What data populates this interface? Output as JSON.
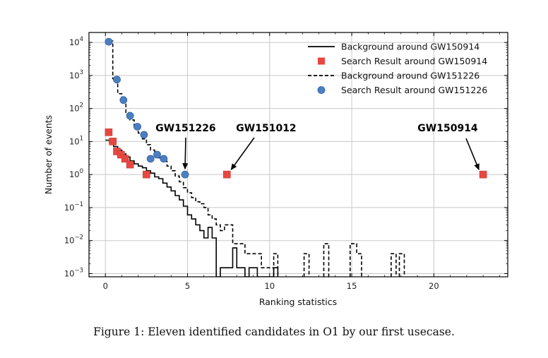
{
  "caption": "Figure 1: Eleven identified candidates in O1 by our first usecase.",
  "colors": {
    "square": "#e8473f",
    "circle": "#4c7fc1",
    "circle_edge": "#2f5f9e",
    "grid": "#c8c8c8",
    "line": "#000000"
  },
  "chart_data": {
    "type": "line",
    "xlabel": "Ranking statistics",
    "ylabel": "Number of events",
    "xlim": [
      -1,
      24.5
    ],
    "ylim": [
      0.0008,
      20000
    ],
    "yscale": "log",
    "grid": true,
    "legend_position": "top-right",
    "xticks": [
      0,
      5,
      10,
      15,
      20
    ],
    "xtick_labels": [
      "0",
      "5",
      "10",
      "15",
      "20"
    ],
    "yticks": [
      {
        "value": 0.001,
        "base": "10",
        "exp": "−3"
      },
      {
        "value": 0.01,
        "base": "10",
        "exp": "−2"
      },
      {
        "value": 0.1,
        "base": "10",
        "exp": "−1"
      },
      {
        "value": 1,
        "base": "10",
        "exp": "0"
      },
      {
        "value": 10,
        "base": "10",
        "exp": "1"
      },
      {
        "value": 100,
        "base": "10",
        "exp": "2"
      },
      {
        "value": 1000,
        "base": "10",
        "exp": "3"
      },
      {
        "value": 10000,
        "base": "10",
        "exp": "4"
      }
    ],
    "series": [
      {
        "name": "Background around GW150914",
        "kind": "step",
        "style": "solid",
        "points": [
          [
            0,
            11
          ],
          [
            0.25,
            11
          ],
          [
            0.25,
            9
          ],
          [
            0.5,
            9
          ],
          [
            0.5,
            7
          ],
          [
            0.75,
            7
          ],
          [
            0.75,
            5.5
          ],
          [
            1,
            5.5
          ],
          [
            1,
            4.2
          ],
          [
            1.25,
            4.2
          ],
          [
            1.25,
            3.4
          ],
          [
            1.5,
            3.4
          ],
          [
            1.5,
            2.6
          ],
          [
            1.75,
            2.6
          ],
          [
            1.75,
            2.1
          ],
          [
            2,
            2.1
          ],
          [
            2,
            1.8
          ],
          [
            2.25,
            1.8
          ],
          [
            2.25,
            1.6
          ],
          [
            2.5,
            1.6
          ],
          [
            2.5,
            1.3
          ],
          [
            2.75,
            1.3
          ],
          [
            2.75,
            1.1
          ],
          [
            3,
            1.1
          ],
          [
            3,
            0.85
          ],
          [
            3.25,
            0.85
          ],
          [
            3.25,
            0.75
          ],
          [
            3.5,
            0.75
          ],
          [
            3.5,
            0.55
          ],
          [
            3.75,
            0.55
          ],
          [
            3.75,
            0.42
          ],
          [
            4,
            0.42
          ],
          [
            4,
            0.32
          ],
          [
            4.25,
            0.32
          ],
          [
            4.25,
            0.23
          ],
          [
            4.5,
            0.23
          ],
          [
            4.5,
            0.17
          ],
          [
            4.75,
            0.17
          ],
          [
            4.75,
            0.11
          ],
          [
            5,
            0.11
          ],
          [
            5,
            0.06
          ],
          [
            5.25,
            0.06
          ],
          [
            5.25,
            0.045
          ],
          [
            5.5,
            0.045
          ],
          [
            5.5,
            0.03
          ],
          [
            5.75,
            0.03
          ],
          [
            5.75,
            0.02
          ],
          [
            6,
            0.02
          ],
          [
            6,
            0.012
          ],
          [
            6.25,
            0.012
          ],
          [
            6.25,
            0.025
          ],
          [
            6.5,
            0.025
          ],
          [
            6.5,
            0.012
          ],
          [
            6.75,
            0.012
          ],
          [
            6.75,
            0.0008
          ],
          [
            7,
            0.0008
          ],
          [
            7,
            0.0015
          ],
          [
            7.75,
            0.0015
          ],
          [
            7.75,
            0.006
          ],
          [
            8,
            0.006
          ],
          [
            8,
            0.0015
          ],
          [
            8.5,
            0.0015
          ],
          [
            8.5,
            0.0008
          ],
          [
            8.75,
            0.0008
          ],
          [
            8.75,
            0.0015
          ],
          [
            9.25,
            0.0015
          ],
          [
            9.25,
            0.0008
          ],
          [
            10.25,
            0.0008
          ],
          [
            10.25,
            0.0015
          ],
          [
            10.5,
            0.0015
          ],
          [
            10.5,
            0.0008
          ]
        ]
      },
      {
        "name": "Search Result around GW150914",
        "kind": "marker",
        "marker": "square",
        "x": [
          0.2,
          0.45,
          0.7,
          0.95,
          1.2,
          1.5,
          2.5,
          7.4,
          23
        ],
        "y": [
          19,
          10,
          5,
          4,
          3,
          2,
          1,
          1,
          1
        ]
      },
      {
        "name": "Background around GW151226",
        "kind": "step",
        "style": "dashed",
        "points": [
          [
            0.25,
            11000
          ],
          [
            0.45,
            11000
          ],
          [
            0.45,
            800
          ],
          [
            0.75,
            800
          ],
          [
            0.75,
            280
          ],
          [
            1,
            280
          ],
          [
            1,
            150
          ],
          [
            1.25,
            150
          ],
          [
            1.25,
            75
          ],
          [
            1.5,
            75
          ],
          [
            1.5,
            45
          ],
          [
            1.75,
            45
          ],
          [
            1.75,
            25
          ],
          [
            2,
            25
          ],
          [
            2,
            18
          ],
          [
            2.25,
            18
          ],
          [
            2.25,
            12
          ],
          [
            2.5,
            12
          ],
          [
            2.5,
            8
          ],
          [
            2.75,
            8
          ],
          [
            2.75,
            5.5
          ],
          [
            3,
            5.5
          ],
          [
            3,
            4.2
          ],
          [
            3.25,
            4.2
          ],
          [
            3.25,
            3.2
          ],
          [
            3.5,
            3.2
          ],
          [
            3.5,
            2.5
          ],
          [
            3.75,
            2.5
          ],
          [
            3.75,
            1.8
          ],
          [
            4,
            1.8
          ],
          [
            4,
            1.3
          ],
          [
            4.25,
            1.3
          ],
          [
            4.25,
            0.9
          ],
          [
            4.5,
            0.9
          ],
          [
            4.5,
            0.6
          ],
          [
            4.75,
            0.6
          ],
          [
            4.75,
            0.4
          ],
          [
            5,
            0.4
          ],
          [
            5,
            0.28
          ],
          [
            5.25,
            0.28
          ],
          [
            5.25,
            0.2
          ],
          [
            5.5,
            0.2
          ],
          [
            5.5,
            0.15
          ],
          [
            5.75,
            0.15
          ],
          [
            5.75,
            0.13
          ],
          [
            6,
            0.13
          ],
          [
            6,
            0.1
          ],
          [
            6.25,
            0.1
          ],
          [
            6.25,
            0.06
          ],
          [
            6.5,
            0.06
          ],
          [
            6.5,
            0.045
          ],
          [
            6.75,
            0.045
          ],
          [
            6.75,
            0.03
          ],
          [
            7,
            0.03
          ],
          [
            7,
            0.02
          ],
          [
            7.25,
            0.02
          ],
          [
            7.25,
            0.03
          ],
          [
            7.75,
            0.03
          ],
          [
            7.75,
            0.008
          ],
          [
            8,
            0.008
          ],
          [
            8,
            0.008
          ],
          [
            8.5,
            0.008
          ],
          [
            8.5,
            0.004
          ],
          [
            9.5,
            0.004
          ],
          [
            9.5,
            0.0015
          ],
          [
            10.25,
            0.0015
          ],
          [
            10.25,
            0.0008
          ]
        ]
      },
      {
        "name": "Search Result around GW151226",
        "kind": "marker",
        "marker": "circle",
        "x": [
          0.2,
          0.7,
          1.1,
          1.5,
          1.95,
          2.35,
          2.75,
          3.15,
          3.55,
          4.85
        ],
        "y": [
          10500,
          750,
          180,
          60,
          28,
          16,
          3,
          4,
          3,
          1
        ]
      }
    ],
    "extra_dashed_segments": [
      [
        [
          10.25,
          0.0008
        ],
        [
          10.25,
          0.004
        ],
        [
          10.5,
          0.004
        ],
        [
          10.5,
          0.0008
        ]
      ],
      [
        [
          12.1,
          0.0008
        ],
        [
          12.1,
          0.004
        ],
        [
          12.4,
          0.004
        ],
        [
          12.4,
          0.0008
        ]
      ],
      [
        [
          13.3,
          0.0008
        ],
        [
          13.3,
          0.008
        ],
        [
          13.6,
          0.008
        ],
        [
          13.6,
          0.0008
        ]
      ],
      [
        [
          14.9,
          0.0008
        ],
        [
          14.9,
          0.008
        ],
        [
          15.3,
          0.008
        ],
        [
          15.3,
          0.004
        ],
        [
          15.6,
          0.004
        ],
        [
          15.6,
          0.0008
        ]
      ],
      [
        [
          17.4,
          0.0008
        ],
        [
          17.4,
          0.004
        ],
        [
          17.7,
          0.004
        ],
        [
          17.7,
          0.0008
        ]
      ],
      [
        [
          17.9,
          0.0008
        ],
        [
          17.9,
          0.004
        ],
        [
          18.2,
          0.004
        ],
        [
          18.2,
          0.0008
        ]
      ]
    ],
    "annotations": [
      {
        "text": "GW151226",
        "target": [
          4.85,
          1
        ]
      },
      {
        "text": "GW151012",
        "target": [
          7.4,
          1
        ]
      },
      {
        "text": "GW150914",
        "target": [
          23,
          1
        ]
      }
    ]
  }
}
